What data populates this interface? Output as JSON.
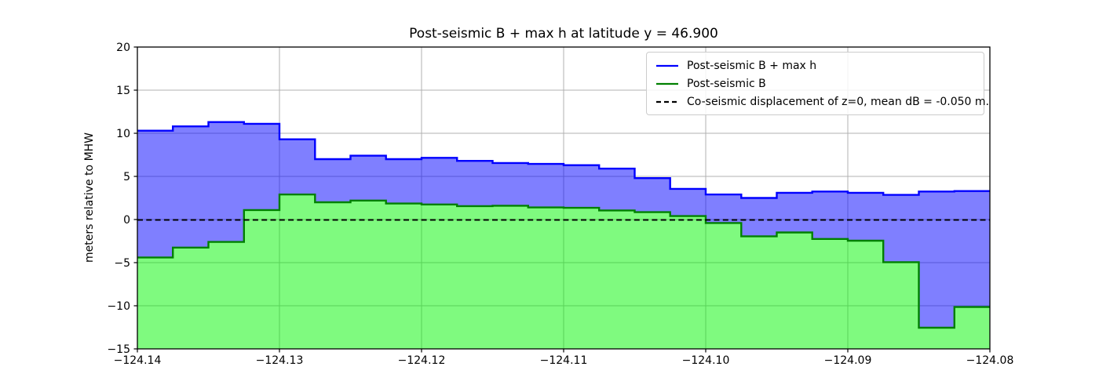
{
  "title": "Post-seismic B + max h at latitude y = 46.900",
  "ylabel": "meters relative to MHW",
  "legend": {
    "items": [
      {
        "label": "Post-seismic B + max h",
        "color": "#0000ff",
        "style": "solid"
      },
      {
        "label": "Post-seismic B",
        "color": "#008000",
        "style": "solid"
      },
      {
        "label": "Co-seismic displacement of z=0, mean dB = -0.050 m.",
        "color": "#000000",
        "style": "dashed"
      }
    ]
  },
  "chart_data": {
    "type": "area",
    "step_mode": "post",
    "title": "Post-seismic B + max h at latitude y = 46.900",
    "xlabel": "",
    "ylabel": "meters relative to MHW",
    "xlim": [
      -124.14,
      -124.08
    ],
    "ylim": [
      -15,
      20
    ],
    "grid": true,
    "grid_color": "#b0b0b0",
    "legend_position": "upper right",
    "xticks": [
      -124.14,
      -124.13,
      -124.12,
      -124.11,
      -124.1,
      -124.09,
      -124.08
    ],
    "xtick_labels": [
      "−124.14",
      "−124.13",
      "−124.12",
      "−124.11",
      "−124.10",
      "−124.09",
      "−124.08"
    ],
    "yticks": [
      20,
      15,
      10,
      5,
      0,
      -5,
      -10,
      -15
    ],
    "ytick_labels": [
      "20",
      "15",
      "10",
      "5",
      "0",
      "−5",
      "−10",
      "−15"
    ],
    "x_edges": [
      -124.14,
      -124.1375,
      -124.135,
      -124.1325,
      -124.13,
      -124.1275,
      -124.125,
      -124.1225,
      -124.12,
      -124.1175,
      -124.115,
      -124.1125,
      -124.11,
      -124.1075,
      -124.105,
      -124.1025,
      -124.1,
      -124.0975,
      -124.095,
      -124.0925,
      -124.09,
      -124.0875,
      -124.085,
      -124.0825,
      -124.08
    ],
    "series": [
      {
        "name": "Post-seismic B + max h",
        "line_color": "#0000ff",
        "fill_color": "rgba(0,0,255,0.5)",
        "values": [
          10.3,
          10.8,
          11.3,
          11.1,
          9.3,
          7.0,
          7.4,
          7.0,
          7.15,
          6.8,
          6.55,
          6.45,
          6.3,
          5.9,
          4.8,
          3.55,
          2.9,
          2.5,
          3.1,
          3.25,
          3.1,
          2.85,
          3.25,
          3.3
        ]
      },
      {
        "name": "Post-seismic B",
        "line_color": "#008000",
        "fill_color": "rgba(0,245,0,0.5)",
        "values": [
          -4.4,
          -3.25,
          -2.6,
          1.1,
          2.9,
          2.0,
          2.2,
          1.85,
          1.75,
          1.55,
          1.6,
          1.4,
          1.35,
          1.05,
          0.85,
          0.4,
          -0.4,
          -1.95,
          -1.5,
          -2.25,
          -2.45,
          -4.95,
          -12.55,
          -10.15
        ]
      }
    ],
    "dashed_line": {
      "name": "Co-seismic displacement of z=0",
      "y": -0.05,
      "mean_dB": "-0.050 m.",
      "color": "#000000"
    }
  }
}
